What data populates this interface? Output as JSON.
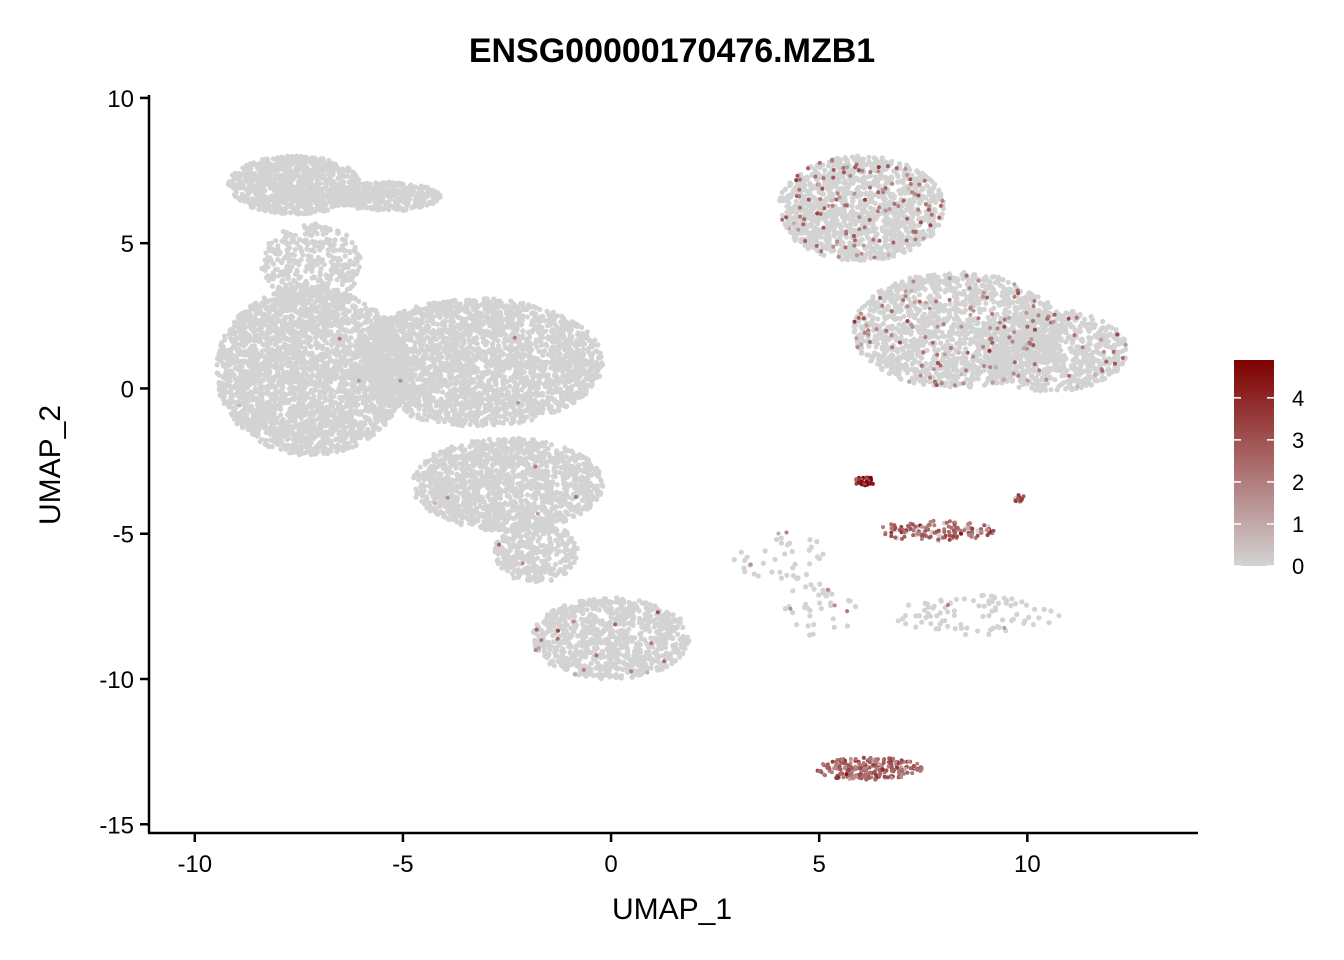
{
  "chart_data": {
    "type": "scatter",
    "title": "ENSG00000170476.MZB1",
    "xlabel": "UMAP_1",
    "ylabel": "UMAP_2",
    "xlim": [
      -11.1,
      14.1
    ],
    "ylim": [
      -15.3,
      10.1
    ],
    "x_ticks": [
      -10,
      -5,
      0,
      5,
      10
    ],
    "x_tick_labels": [
      "-10",
      "-5",
      "0",
      "5",
      "10"
    ],
    "y_ticks": [
      10,
      5,
      0,
      -5,
      -10,
      -15
    ],
    "y_tick_labels": [
      "10",
      "5",
      "0",
      "-5",
      "-10",
      "-15"
    ],
    "grid": false,
    "legend": "right",
    "color_scale": {
      "low_color": "#d3d3d3",
      "high_color": "#7f0000",
      "min": 0,
      "max": 4.9,
      "ticks": [
        0,
        1,
        2,
        3,
        4
      ],
      "tick_labels": [
        "0",
        "1",
        "2",
        "3",
        "4"
      ]
    },
    "clusters": [
      {
        "cx": -7.6,
        "cy": 7.0,
        "rx": 1.6,
        "ry": 1.0,
        "n": 900,
        "expr_rate": 0.0,
        "expr_mean": 0.5
      },
      {
        "cx": -5.4,
        "cy": 6.6,
        "rx": 1.3,
        "ry": 0.5,
        "n": 400,
        "expr_rate": 0.0,
        "expr_mean": 0.5
      },
      {
        "cx": -7.2,
        "cy": 4.3,
        "rx": 1.2,
        "ry": 1.4,
        "n": 400,
        "expr_rate": 0.0,
        "expr_mean": 0.5
      },
      {
        "cx": -7.2,
        "cy": 0.6,
        "rx": 2.3,
        "ry": 2.9,
        "n": 2800,
        "expr_rate": 0.001,
        "expr_mean": 1.5
      },
      {
        "cx": -3.2,
        "cy": 0.9,
        "rx": 3.0,
        "ry": 2.2,
        "n": 2600,
        "expr_rate": 0.002,
        "expr_mean": 1.5
      },
      {
        "cx": -2.5,
        "cy": -3.3,
        "rx": 2.3,
        "ry": 1.6,
        "n": 1400,
        "expr_rate": 0.002,
        "expr_mean": 1.5
      },
      {
        "cx": -1.8,
        "cy": -5.6,
        "rx": 1.0,
        "ry": 1.1,
        "n": 350,
        "expr_rate": 0.005,
        "expr_mean": 1.5
      },
      {
        "cx": 0.0,
        "cy": -8.6,
        "rx": 1.9,
        "ry": 1.4,
        "n": 900,
        "expr_rate": 0.015,
        "expr_mean": 2.0
      },
      {
        "cx": 6.0,
        "cy": 6.2,
        "rx": 2.0,
        "ry": 1.8,
        "n": 1300,
        "expr_rate": 0.08,
        "expr_mean": 2.2
      },
      {
        "cx": 8.3,
        "cy": 2.0,
        "rx": 2.5,
        "ry": 2.0,
        "n": 1500,
        "expr_rate": 0.06,
        "expr_mean": 2.0
      },
      {
        "cx": 10.6,
        "cy": 1.3,
        "rx": 1.8,
        "ry": 1.4,
        "n": 800,
        "expr_rate": 0.04,
        "expr_mean": 1.8
      },
      {
        "cx": 6.1,
        "cy": -3.2,
        "rx": 0.25,
        "ry": 0.15,
        "n": 40,
        "expr_rate": 1.0,
        "expr_mean": 4.2
      },
      {
        "cx": 7.8,
        "cy": -4.9,
        "rx": 1.4,
        "ry": 0.35,
        "n": 140,
        "expr_rate": 0.8,
        "expr_mean": 2.6
      },
      {
        "cx": 9.8,
        "cy": -3.8,
        "rx": 0.15,
        "ry": 0.15,
        "n": 12,
        "expr_rate": 0.9,
        "expr_mean": 3.0
      },
      {
        "cx": 6.2,
        "cy": -13.1,
        "rx": 1.3,
        "ry": 0.4,
        "n": 220,
        "expr_rate": 0.98,
        "expr_mean": 2.4
      },
      {
        "cx": 8.8,
        "cy": -7.8,
        "rx": 2.0,
        "ry": 0.7,
        "n": 90,
        "expr_rate": 0.02,
        "expr_mean": 1.5
      },
      {
        "cx": 4.1,
        "cy": -5.8,
        "rx": 1.2,
        "ry": 0.9,
        "n": 40,
        "expr_rate": 0.05,
        "expr_mean": 1.5
      },
      {
        "cx": 5.0,
        "cy": -7.6,
        "rx": 0.9,
        "ry": 1.0,
        "n": 40,
        "expr_rate": 0.1,
        "expr_mean": 1.8
      }
    ]
  }
}
